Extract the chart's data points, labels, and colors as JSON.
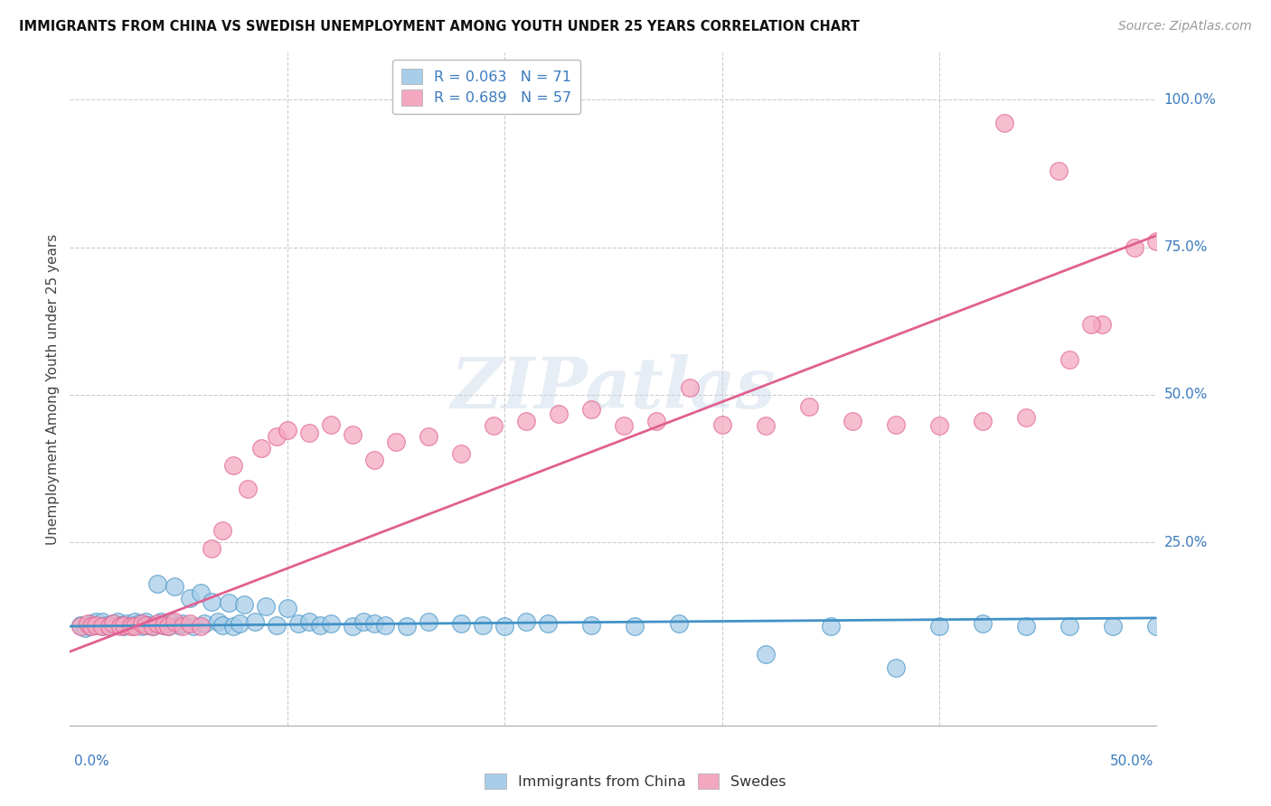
{
  "title": "IMMIGRANTS FROM CHINA VS SWEDISH UNEMPLOYMENT AMONG YOUTH UNDER 25 YEARS CORRELATION CHART",
  "source": "Source: ZipAtlas.com",
  "ylabel": "Unemployment Among Youth under 25 years",
  "ylabel_right_ticks": [
    "100.0%",
    "75.0%",
    "50.0%",
    "25.0%"
  ],
  "ylabel_right_vals": [
    1.0,
    0.75,
    0.5,
    0.25
  ],
  "xlim": [
    0.0,
    0.5
  ],
  "ylim": [
    -0.06,
    1.08
  ],
  "legend_entry1": "R = 0.063   N = 71",
  "legend_entry2": "R = 0.689   N = 57",
  "legend_label1": "Immigrants from China",
  "legend_label2": "Swedes",
  "watermark": "ZIPatlas",
  "color_blue": "#a8cde8",
  "color_pink": "#f4a8c0",
  "color_blue_line": "#4292c6",
  "color_pink_line": "#e06090",
  "color_blue_text": "#3a7abf",
  "color_axis_text": "#3a7abf",
  "scatter_blue_x": [
    0.005,
    0.007,
    0.009,
    0.01,
    0.012,
    0.015,
    0.015,
    0.017,
    0.018,
    0.02,
    0.022,
    0.023,
    0.025,
    0.026,
    0.028,
    0.03,
    0.032,
    0.033,
    0.035,
    0.036,
    0.038,
    0.04,
    0.042,
    0.043,
    0.045,
    0.046,
    0.048,
    0.05,
    0.052,
    0.055,
    0.057,
    0.06,
    0.062,
    0.065,
    0.068,
    0.07,
    0.073,
    0.075,
    0.078,
    0.08,
    0.085,
    0.09,
    0.095,
    0.1,
    0.105,
    0.11,
    0.115,
    0.12,
    0.13,
    0.135,
    0.14,
    0.145,
    0.155,
    0.165,
    0.18,
    0.19,
    0.2,
    0.21,
    0.22,
    0.24,
    0.26,
    0.28,
    0.32,
    0.35,
    0.38,
    0.4,
    0.42,
    0.44,
    0.46,
    0.48,
    0.5
  ],
  "scatter_blue_y": [
    0.11,
    0.105,
    0.108,
    0.112,
    0.115,
    0.108,
    0.115,
    0.11,
    0.108,
    0.112,
    0.115,
    0.11,
    0.108,
    0.112,
    0.11,
    0.115,
    0.112,
    0.108,
    0.115,
    0.11,
    0.108,
    0.18,
    0.115,
    0.11,
    0.108,
    0.115,
    0.175,
    0.11,
    0.112,
    0.155,
    0.108,
    0.165,
    0.112,
    0.15,
    0.115,
    0.11,
    0.148,
    0.108,
    0.112,
    0.145,
    0.115,
    0.142,
    0.11,
    0.138,
    0.112,
    0.115,
    0.11,
    0.112,
    0.108,
    0.115,
    0.112,
    0.11,
    0.108,
    0.115,
    0.112,
    0.11,
    0.108,
    0.115,
    0.112,
    0.11,
    0.108,
    0.112,
    0.06,
    0.108,
    0.038,
    0.108,
    0.112,
    0.108,
    0.108,
    0.108,
    0.108
  ],
  "scatter_pink_x": [
    0.005,
    0.008,
    0.01,
    0.012,
    0.015,
    0.018,
    0.02,
    0.023,
    0.025,
    0.028,
    0.03,
    0.033,
    0.035,
    0.038,
    0.04,
    0.043,
    0.045,
    0.048,
    0.052,
    0.055,
    0.06,
    0.065,
    0.07,
    0.075,
    0.082,
    0.088,
    0.095,
    0.1,
    0.11,
    0.12,
    0.13,
    0.14,
    0.15,
    0.165,
    0.18,
    0.195,
    0.21,
    0.225,
    0.24,
    0.255,
    0.27,
    0.285,
    0.3,
    0.32,
    0.34,
    0.36,
    0.38,
    0.4,
    0.42,
    0.44,
    0.46,
    0.475,
    0.49,
    0.5,
    0.43,
    0.455,
    0.47
  ],
  "scatter_pink_y": [
    0.108,
    0.112,
    0.108,
    0.11,
    0.108,
    0.108,
    0.112,
    0.108,
    0.11,
    0.108,
    0.108,
    0.112,
    0.11,
    0.108,
    0.112,
    0.11,
    0.108,
    0.115,
    0.108,
    0.112,
    0.108,
    0.24,
    0.27,
    0.38,
    0.34,
    0.41,
    0.43,
    0.44,
    0.435,
    0.45,
    0.432,
    0.39,
    0.42,
    0.43,
    0.4,
    0.448,
    0.455,
    0.468,
    0.475,
    0.448,
    0.455,
    0.512,
    0.45,
    0.448,
    0.48,
    0.455,
    0.45,
    0.448,
    0.455,
    0.462,
    0.56,
    0.62,
    0.75,
    0.76,
    0.96,
    0.88,
    0.62
  ],
  "blue_line_x": [
    0.0,
    0.5
  ],
  "blue_line_y": [
    0.108,
    0.122
  ],
  "pink_line_x": [
    0.0,
    0.5
  ],
  "pink_line_y": [
    0.065,
    0.77
  ]
}
